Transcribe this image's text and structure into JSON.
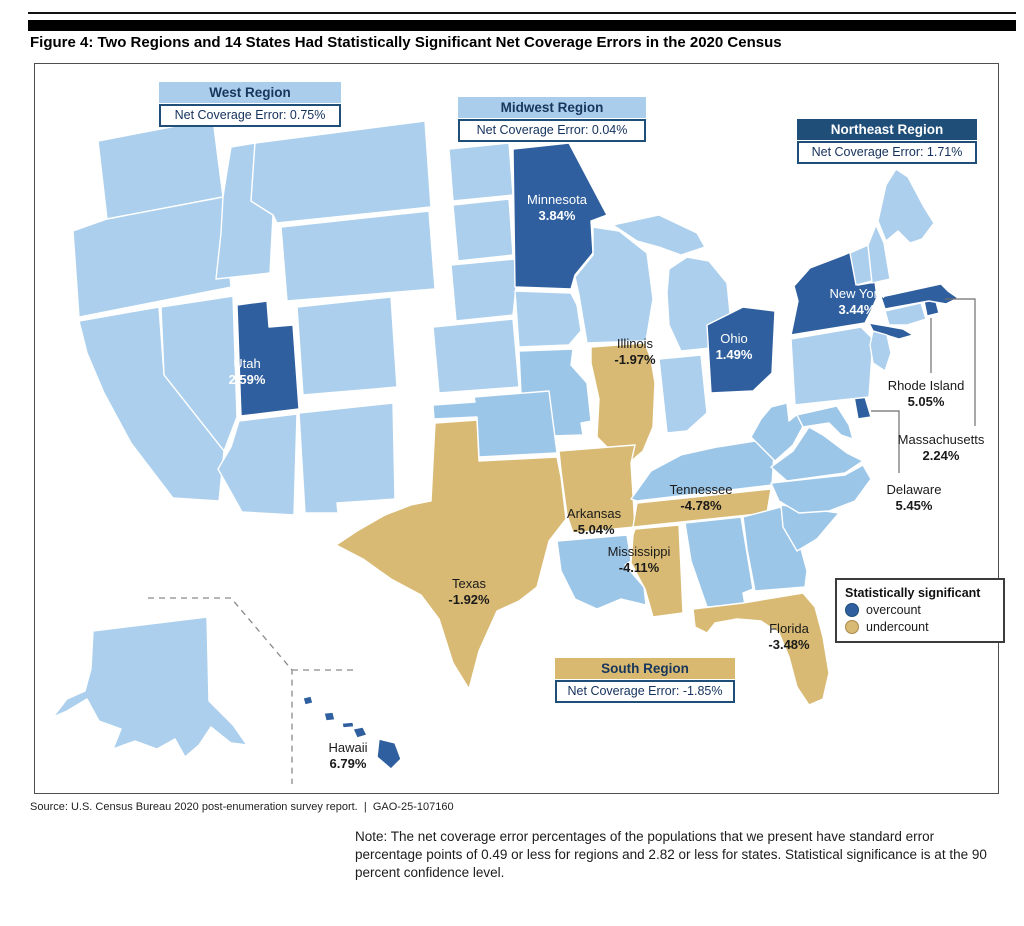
{
  "figure": {
    "title": "Figure 4: Two Regions and 14 States Had Statistically Significant Net Coverage Errors in the 2020 Census"
  },
  "footer": {
    "source": "Source: U.S. Census Bureau 2020 post-enumeration survey report.",
    "separator": "|",
    "report_id": "GAO-25-107160",
    "note": "Note: The net coverage error percentages of the populations that we present have standard error percentage points of 0.49 or less for regions and 2.82 or less for states. Statistical significance is at the 90 percent confidence level."
  },
  "colors": {
    "state_default": "#abcfec",
    "state_south": "#9cc6e8",
    "overcount": "#2f5f9e",
    "undercount": "#d9ba74",
    "navy": "#1f4e79",
    "header_light_blue": "#a9cdea",
    "header_tan": "#d9b96f",
    "callout_line": "#6e6e6e",
    "state_border": "#ffffff"
  },
  "regions": [
    {
      "id": "west",
      "name": "West Region",
      "error": "Net Coverage Error: 0.75%",
      "header_style": "light-blue"
    },
    {
      "id": "midwest",
      "name": "Midwest Region",
      "error": "Net Coverage Error: 0.04%",
      "header_style": "light-blue"
    },
    {
      "id": "northeast",
      "name": "Northeast Region",
      "error": "Net Coverage Error: 1.71%",
      "header_style": "navy"
    },
    {
      "id": "south",
      "name": "South Region",
      "error": "Net Coverage Error: -1.85%",
      "header_style": "tan"
    }
  ],
  "legend": {
    "title": "Statistically significant",
    "items": [
      {
        "label": "overcount",
        "status": "overcount"
      },
      {
        "label": "undercount",
        "status": "undercount"
      }
    ]
  },
  "states": [
    {
      "id": "MN",
      "name": "Minnesota",
      "value": "3.84%",
      "status": "overcount"
    },
    {
      "id": "UT",
      "name": "Utah",
      "value": "2.59%",
      "status": "overcount"
    },
    {
      "id": "OH",
      "name": "Ohio",
      "value": "1.49%",
      "status": "overcount"
    },
    {
      "id": "NY",
      "name": "New York",
      "value": "3.44%",
      "status": "overcount"
    },
    {
      "id": "HI",
      "name": "Hawaii",
      "value": "6.79%",
      "status": "overcount"
    },
    {
      "id": "RI",
      "name": "Rhode Island",
      "value": "5.05%",
      "status": "overcount"
    },
    {
      "id": "MA",
      "name": "Massachusetts",
      "value": "2.24%",
      "status": "overcount"
    },
    {
      "id": "DE",
      "name": "Delaware",
      "value": "5.45%",
      "status": "overcount"
    },
    {
      "id": "IL",
      "name": "Illinois",
      "value": "-1.97%",
      "status": "undercount"
    },
    {
      "id": "TN",
      "name": "Tennessee",
      "value": "-4.78%",
      "status": "undercount"
    },
    {
      "id": "AR",
      "name": "Arkansas",
      "value": "-5.04%",
      "status": "undercount"
    },
    {
      "id": "MS",
      "name": "Mississippi",
      "value": "-4.11%",
      "status": "undercount"
    },
    {
      "id": "TX",
      "name": "Texas",
      "value": "-1.92%",
      "status": "undercount"
    },
    {
      "id": "FL",
      "name": "Florida",
      "value": "-3.48%",
      "status": "undercount"
    }
  ]
}
